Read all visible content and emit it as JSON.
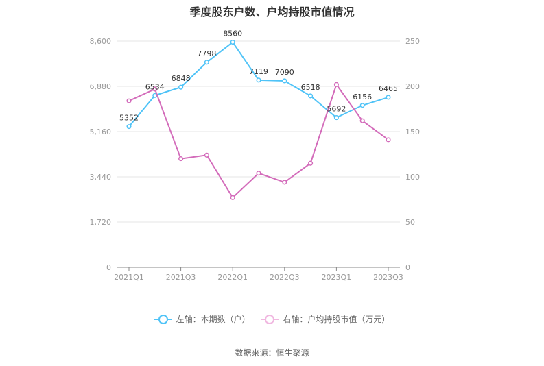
{
  "title": "季度股东户数、户均持股市值情况",
  "source": "数据来源：恒生聚源",
  "legend": {
    "left_label": "左轴：本期数（户）",
    "right_label": "右轴：户均持股市值（万元）"
  },
  "colors": {
    "left_series": "#4fc3f7",
    "right_series": "#d36bba"
  },
  "chart_data": {
    "type": "line",
    "title": "季度股东户数、户均持股市值情况",
    "x": [
      "2021Q1",
      "2021Q2",
      "2021Q3",
      "2021Q4",
      "2022Q1",
      "2022Q2",
      "2022Q3",
      "2022Q4",
      "2023Q1",
      "2023Q2",
      "2023Q3"
    ],
    "x_tick_labels": [
      "2021Q1",
      "2021Q3",
      "2022Q1",
      "2022Q3",
      "2023Q1",
      "2023Q3"
    ],
    "y_left": {
      "ticks": [
        "0",
        "1,720",
        "3,440",
        "5,160",
        "6,880",
        "8,600"
      ],
      "range": [
        0,
        8600
      ]
    },
    "y_right": {
      "ticks": [
        "0",
        "50",
        "100",
        "150",
        "200",
        "250"
      ],
      "range": [
        0,
        250
      ]
    },
    "grid": true,
    "legend_position": "bottom",
    "series": [
      {
        "name": "左轴：本期数（户）",
        "axis": "left",
        "values": [
          5352,
          6534,
          6848,
          7798,
          8560,
          7119,
          7090,
          6518,
          5692,
          6156,
          6465
        ],
        "labels": [
          "5352",
          "6534",
          "6848",
          "7798",
          "8560",
          "7119",
          "7090",
          "6518",
          "5692",
          "6156",
          "6465"
        ]
      },
      {
        "name": "右轴：户均持股市值（万元）",
        "axis": "right",
        "values": [
          184,
          197,
          120,
          124,
          77,
          104,
          94,
          115,
          202,
          162,
          141
        ]
      }
    ]
  }
}
